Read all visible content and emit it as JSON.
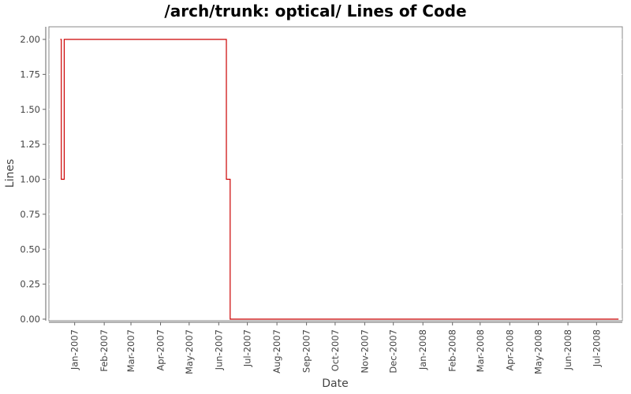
{
  "chart_data": {
    "type": "line",
    "title": "/arch/trunk: optical/ Lines of Code",
    "xlabel": "Date",
    "ylabel": "Lines",
    "ylim": [
      0,
      2.1
    ],
    "xlim": [
      "2006-12-05",
      "2008-07-28"
    ],
    "y_ticks": [
      "0.00",
      "0.25",
      "0.50",
      "0.75",
      "1.00",
      "1.25",
      "1.50",
      "1.75",
      "2.00"
    ],
    "x_ticks": [
      {
        "date": "2007-01-01",
        "label": "Jan-2007"
      },
      {
        "date": "2007-02-01",
        "label": "Feb-2007"
      },
      {
        "date": "2007-03-01",
        "label": "Mar-2007"
      },
      {
        "date": "2007-04-01",
        "label": "Apr-2007"
      },
      {
        "date": "2007-05-01",
        "label": "May-2007"
      },
      {
        "date": "2007-06-01",
        "label": "Jun-2007"
      },
      {
        "date": "2007-07-01",
        "label": "Jul-2007"
      },
      {
        "date": "2007-08-01",
        "label": "Aug-2007"
      },
      {
        "date": "2007-09-01",
        "label": "Sep-2007"
      },
      {
        "date": "2007-10-01",
        "label": "Oct-2007"
      },
      {
        "date": "2007-11-01",
        "label": "Nov-2007"
      },
      {
        "date": "2007-12-01",
        "label": "Dec-2007"
      },
      {
        "date": "2008-01-01",
        "label": "Jan-2008"
      },
      {
        "date": "2008-02-01",
        "label": "Feb-2008"
      },
      {
        "date": "2008-03-01",
        "label": "Mar-2008"
      },
      {
        "date": "2008-04-01",
        "label": "Apr-2008"
      },
      {
        "date": "2008-05-01",
        "label": "May-2008"
      },
      {
        "date": "2008-06-01",
        "label": "Jun-2008"
      },
      {
        "date": "2008-07-01",
        "label": "Jul-2008"
      }
    ],
    "grid": true,
    "series": [
      {
        "color": "#cc0000",
        "step": true,
        "points": [
          {
            "x": "2006-12-17",
            "y": 2
          },
          {
            "x": "2006-12-18",
            "y": 1
          },
          {
            "x": "2006-12-21",
            "y": 2
          },
          {
            "x": "2007-06-09",
            "y": 1
          },
          {
            "x": "2007-06-13",
            "y": 0
          },
          {
            "x": "2008-07-24",
            "y": 0
          }
        ]
      }
    ]
  }
}
